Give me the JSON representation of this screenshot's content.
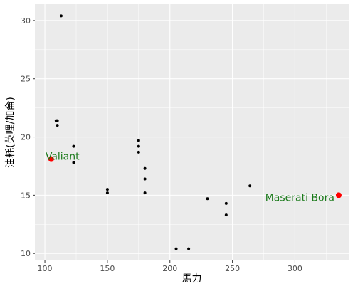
{
  "chart_data": {
    "type": "scatter",
    "xlabel": "馬力",
    "ylabel": "油耗(英哩/加侖)",
    "xlim": [
      92,
      343
    ],
    "ylim": [
      9.4,
      31.4
    ],
    "xticks": [
      100,
      150,
      200,
      250,
      300
    ],
    "yticks": [
      10,
      15,
      20,
      25,
      30
    ],
    "grid": true,
    "point_color": "#000000",
    "highlight_color": "#ff0000",
    "label_color": "#1a7a1a",
    "points": [
      {
        "x": 113,
        "y": 30.4
      },
      {
        "x": 109,
        "y": 21.4
      },
      {
        "x": 110,
        "y": 21.4
      },
      {
        "x": 110,
        "y": 21.0
      },
      {
        "x": 123,
        "y": 19.2
      },
      {
        "x": 123,
        "y": 17.8
      },
      {
        "x": 150,
        "y": 15.5
      },
      {
        "x": 150,
        "y": 15.2
      },
      {
        "x": 175,
        "y": 19.7
      },
      {
        "x": 175,
        "y": 19.2
      },
      {
        "x": 175,
        "y": 18.7
      },
      {
        "x": 180,
        "y": 17.3
      },
      {
        "x": 180,
        "y": 16.4
      },
      {
        "x": 180,
        "y": 15.2
      },
      {
        "x": 205,
        "y": 10.4
      },
      {
        "x": 215,
        "y": 10.4
      },
      {
        "x": 230,
        "y": 14.7
      },
      {
        "x": 245,
        "y": 14.3
      },
      {
        "x": 245,
        "y": 13.3
      },
      {
        "x": 264,
        "y": 15.8
      }
    ],
    "highlights": [
      {
        "label": "Valiant",
        "x": 105,
        "y": 18.1
      },
      {
        "label": "Maserati Bora",
        "x": 335,
        "y": 15.0
      }
    ]
  }
}
